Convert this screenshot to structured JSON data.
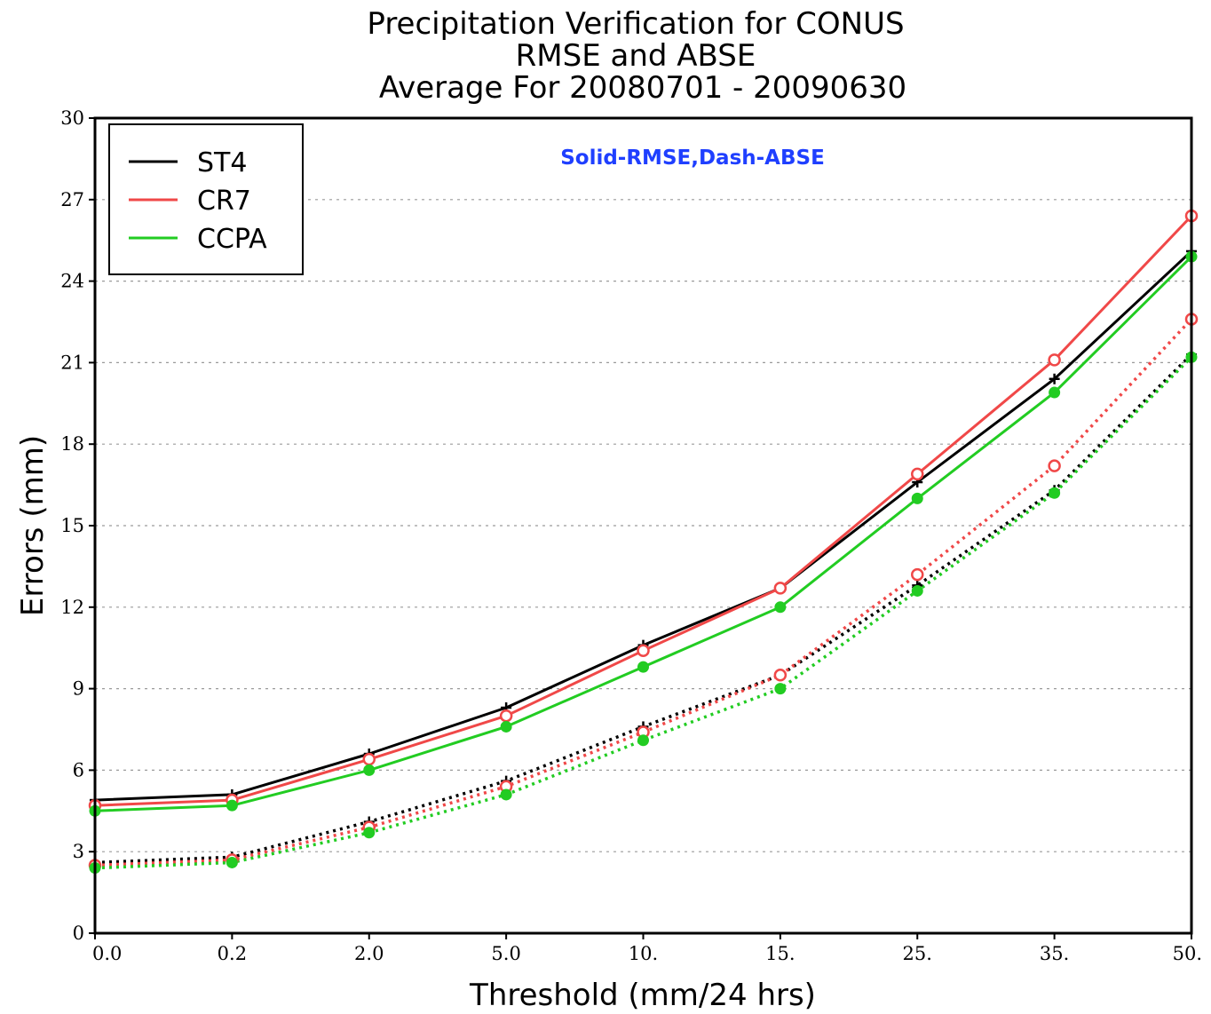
{
  "chart_data": {
    "type": "line",
    "title": [
      "Precipitation Verification for CONUS",
      "RMSE and ABSE",
      "Average For 20080701 - 20090630"
    ],
    "annotation": "Solid-RMSE,Dash-ABSE",
    "annotation_color": "#1f3fff",
    "xlabel": "Threshold (mm/24 hrs)",
    "ylabel": "Errors (mm)",
    "categories": [
      "0.0",
      "0.2",
      "2.0",
      "5.0",
      "10.",
      "15.",
      "25.",
      "35.",
      "50."
    ],
    "yticks": [
      "0",
      "3",
      "6",
      "9",
      "12",
      "15",
      "18",
      "21",
      "24",
      "27",
      "30"
    ],
    "ylim": [
      0,
      30
    ],
    "grid": "horizontal dotted",
    "legend_position": "top-left",
    "series": [
      {
        "name": "ST4",
        "metric": "RMSE",
        "style": "solid",
        "marker": "plus",
        "color": "#000000",
        "values": [
          4.9,
          5.1,
          6.6,
          8.3,
          10.6,
          12.7,
          16.6,
          20.4,
          25.1
        ]
      },
      {
        "name": "CR7",
        "metric": "RMSE",
        "style": "solid",
        "marker": "open-circle",
        "color": "#f04848",
        "values": [
          4.7,
          4.9,
          6.4,
          8.0,
          10.4,
          12.7,
          16.9,
          21.1,
          26.4
        ]
      },
      {
        "name": "CCPA",
        "metric": "RMSE",
        "style": "solid",
        "marker": "filled-circle",
        "color": "#22cc22",
        "values": [
          4.5,
          4.7,
          6.0,
          7.6,
          9.8,
          12.0,
          16.0,
          19.9,
          24.9
        ]
      },
      {
        "name": "ST4",
        "metric": "ABSE",
        "style": "dotted",
        "marker": "plus",
        "color": "#000000",
        "values": [
          2.6,
          2.8,
          4.1,
          5.6,
          7.6,
          9.5,
          12.8,
          16.3,
          21.3
        ]
      },
      {
        "name": "CR7",
        "metric": "ABSE",
        "style": "dotted",
        "marker": "open-circle",
        "color": "#f04848",
        "values": [
          2.5,
          2.7,
          3.9,
          5.4,
          7.4,
          9.5,
          13.2,
          17.2,
          22.6
        ]
      },
      {
        "name": "CCPA",
        "metric": "ABSE",
        "style": "dotted",
        "marker": "filled-circle",
        "color": "#22cc22",
        "values": [
          2.4,
          2.6,
          3.7,
          5.1,
          7.1,
          9.0,
          12.6,
          16.2,
          21.2
        ]
      }
    ],
    "legend": [
      {
        "label": "ST4",
        "color": "#000000"
      },
      {
        "label": "CR7",
        "color": "#f04848"
      },
      {
        "label": "CCPA",
        "color": "#22cc22"
      }
    ]
  }
}
